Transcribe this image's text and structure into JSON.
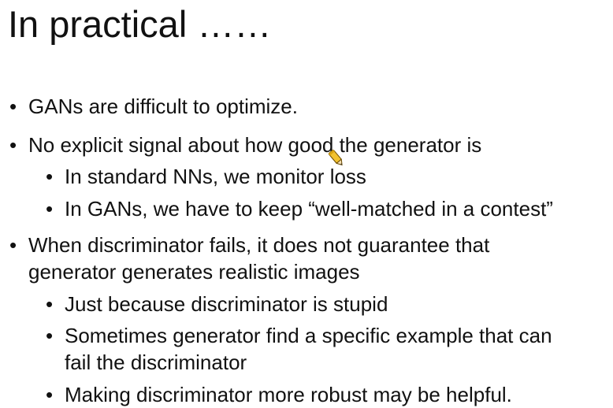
{
  "slide": {
    "title": "In practical ……",
    "bullets": [
      {
        "level": 1,
        "lines": [
          "GANs are difficult to optimize."
        ]
      },
      {
        "level": 1,
        "lines": [
          "No explicit signal about how good the generator is"
        ]
      },
      {
        "level": 2,
        "lines": [
          "In standard NNs, we monitor loss"
        ]
      },
      {
        "level": 2,
        "lines": [
          "In GANs, we have to keep “well-matched in a contest”"
        ]
      },
      {
        "level": 1,
        "lines": [
          "When discriminator fails, it does not guarantee that",
          "generator generates realistic images"
        ]
      },
      {
        "level": 2,
        "lines": [
          "Just because discriminator is stupid"
        ]
      },
      {
        "level": 2,
        "lines": [
          "Sometimes generator find a specific example that can",
          "fail the discriminator"
        ]
      },
      {
        "level": 2,
        "lines": [
          "Making discriminator more robust may be helpful."
        ]
      }
    ],
    "bullet_glyph": "•",
    "cursor_icon": "pen-cursor-icon"
  }
}
